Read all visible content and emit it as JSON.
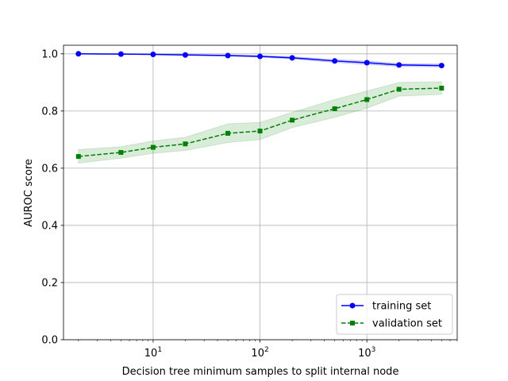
{
  "chart_data": {
    "type": "line",
    "title": "",
    "xlabel": "Decision tree minimum samples to split internal node",
    "ylabel": "AUROC score",
    "xscale": "log",
    "xlim": [
      1.45,
      7000
    ],
    "ylim": [
      0.0,
      1.03
    ],
    "x_ticks": [
      {
        "value": 10,
        "base": "10",
        "exp": "1"
      },
      {
        "value": 100,
        "base": "10",
        "exp": "2"
      },
      {
        "value": 1000,
        "base": "10",
        "exp": "3"
      }
    ],
    "y_ticks": [
      0.0,
      0.2,
      0.4,
      0.6,
      0.8,
      1.0
    ],
    "y_tick_labels": [
      "0.0",
      "0.2",
      "0.4",
      "0.6",
      "0.8",
      "1.0"
    ],
    "grid": true,
    "legend_position": "bottom-right",
    "x": [
      2,
      5,
      10,
      20,
      50,
      100,
      200,
      500,
      1000,
      2000,
      5000
    ],
    "series": [
      {
        "name": "training set",
        "color": "#0000ff",
        "linestyle": "solid",
        "marker": "circle",
        "values": [
          1.0,
          0.999,
          0.998,
          0.996,
          0.994,
          0.991,
          0.986,
          0.975,
          0.969,
          0.961,
          0.959
        ],
        "band_low": [
          0.999,
          0.998,
          0.997,
          0.995,
          0.992,
          0.988,
          0.982,
          0.97,
          0.963,
          0.956,
          0.954
        ],
        "band_high": [
          1.0,
          1.0,
          0.999,
          0.998,
          0.996,
          0.994,
          0.99,
          0.98,
          0.975,
          0.966,
          0.964
        ]
      },
      {
        "name": "validation set",
        "color": "#008000",
        "linestyle": "dashed",
        "marker": "square",
        "values": [
          0.641,
          0.655,
          0.673,
          0.685,
          0.722,
          0.73,
          0.768,
          0.808,
          0.84,
          0.876,
          0.88
        ],
        "band_low": [
          0.618,
          0.635,
          0.652,
          0.662,
          0.69,
          0.7,
          0.742,
          0.778,
          0.81,
          0.852,
          0.858
        ],
        "band_high": [
          0.665,
          0.675,
          0.695,
          0.708,
          0.755,
          0.76,
          0.795,
          0.84,
          0.87,
          0.9,
          0.902
        ]
      }
    ]
  }
}
